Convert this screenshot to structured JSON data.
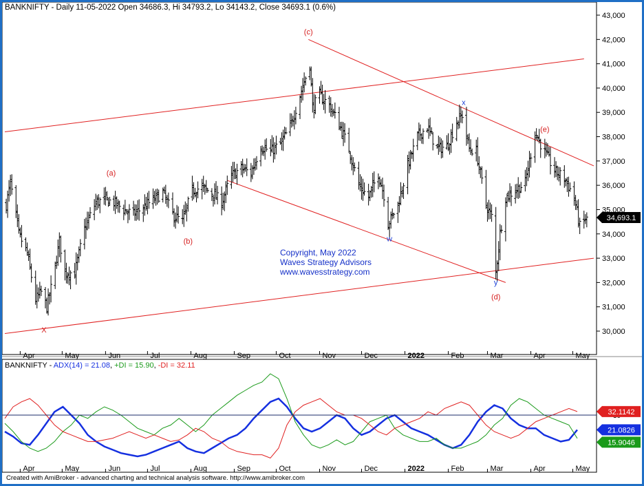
{
  "upper_panel": {
    "header": "BANKNIFTY - Daily 11-05-2022 Open 34686.3, Hi 34793.2, Lo 34143.2, Close 34693.1 (0.6%)",
    "last_price_label": "34,693.1",
    "watermark": [
      "Copyright, May 2022",
      "Waves Strategy Advisors",
      "www.wavesstrategy.com"
    ],
    "wave_labels": [
      {
        "text": "(c)",
        "color": "#d62020"
      },
      {
        "text": "(a)",
        "color": "#d62020"
      },
      {
        "text": "(b)",
        "color": "#d62020"
      },
      {
        "text": "X",
        "color": "#d62020"
      },
      {
        "text": "w",
        "color": "#1a3fd6"
      },
      {
        "text": "x",
        "color": "#1a3fd6"
      },
      {
        "text": "y",
        "color": "#1a3fd6"
      },
      {
        "text": "(d)",
        "color": "#d62020"
      },
      {
        "text": "(e)",
        "color": "#d62020"
      }
    ]
  },
  "lower_panel": {
    "header": {
      "prefix": "BANKNIFTY - ",
      "adx": "ADX(14) = 21.08",
      "sep1": ", ",
      "pdi": "+DI = 15.90",
      "sep2": ", ",
      "mdi": "-DI = 32.11"
    },
    "reference_level_label": "30",
    "value_boxes": [
      {
        "name": "-DI",
        "text": "32.1142",
        "color": "#e02020"
      },
      {
        "name": "ADX",
        "text": "21.0826",
        "color": "#1530e0"
      },
      {
        "name": "+DI",
        "text": "15.9046",
        "color": "#1a9a1a"
      }
    ]
  },
  "footer": "Created with AmiBroker - advanced charting and technical analysis software. http://www.amibroker.com",
  "chart_data": [
    {
      "type": "ohlc",
      "title": "BANKNIFTY - Daily",
      "y_tick_labels": [
        "30,000",
        "31,000",
        "32,000",
        "33,000",
        "34,000",
        "35,000",
        "36,000",
        "37,000",
        "38,000",
        "39,000",
        "40,000",
        "41,000",
        "42,000",
        "43,000"
      ],
      "ylim": [
        29700,
        43200
      ],
      "x_tick_labels": [
        "Apr",
        "May",
        "Jun",
        "Jul",
        "Aug",
        "Sep",
        "Oct",
        "Nov",
        "Dec",
        "2022",
        "Feb",
        "Mar",
        "Apr",
        "May"
      ],
      "xlim": [
        "2021-03-21",
        "2022-05-16"
      ],
      "price_path": [
        {
          "date": "2021-03-22",
          "close": 35200
        },
        {
          "date": "2021-03-25",
          "close": 36100
        },
        {
          "date": "2021-03-31",
          "close": 34000
        },
        {
          "date": "2021-04-06",
          "close": 33200
        },
        {
          "date": "2021-04-12",
          "close": 31300
        },
        {
          "date": "2021-04-16",
          "close": 31600
        },
        {
          "date": "2021-04-20",
          "close": 31000
        },
        {
          "date": "2021-04-24",
          "close": 32000
        },
        {
          "date": "2021-04-29",
          "close": 33700
        },
        {
          "date": "2021-05-03",
          "close": 32400
        },
        {
          "date": "2021-05-10",
          "close": 32400
        },
        {
          "date": "2021-05-17",
          "close": 34200
        },
        {
          "date": "2021-05-25",
          "close": 35300
        },
        {
          "date": "2021-06-01",
          "close": 35400
        },
        {
          "date": "2021-06-07",
          "close": 35300
        },
        {
          "date": "2021-06-14",
          "close": 35000
        },
        {
          "date": "2021-06-21",
          "close": 34800
        },
        {
          "date": "2021-06-28",
          "close": 35100
        },
        {
          "date": "2021-07-05",
          "close": 35400
        },
        {
          "date": "2021-07-12",
          "close": 35700
        },
        {
          "date": "2021-07-19",
          "close": 34800
        },
        {
          "date": "2021-07-26",
          "close": 34500
        },
        {
          "date": "2021-08-02",
          "close": 35800
        },
        {
          "date": "2021-08-09",
          "close": 35900
        },
        {
          "date": "2021-08-16",
          "close": 35700
        },
        {
          "date": "2021-08-23",
          "close": 35300
        },
        {
          "date": "2021-08-30",
          "close": 36400
        },
        {
          "date": "2021-09-06",
          "close": 36700
        },
        {
          "date": "2021-09-13",
          "close": 36500
        },
        {
          "date": "2021-09-20",
          "close": 37600
        },
        {
          "date": "2021-09-27",
          "close": 37400
        },
        {
          "date": "2021-10-04",
          "close": 37700
        },
        {
          "date": "2021-10-11",
          "close": 38400
        },
        {
          "date": "2021-10-18",
          "close": 39700
        },
        {
          "date": "2021-10-25",
          "close": 41000
        },
        {
          "date": "2021-10-27",
          "close": 39200
        },
        {
          "date": "2021-11-01",
          "close": 39700
        },
        {
          "date": "2021-11-08",
          "close": 39300
        },
        {
          "date": "2021-11-15",
          "close": 38500
        },
        {
          "date": "2021-11-22",
          "close": 37500
        },
        {
          "date": "2021-11-29",
          "close": 36000
        },
        {
          "date": "2021-12-06",
          "close": 35500
        },
        {
          "date": "2021-12-13",
          "close": 36500
        },
        {
          "date": "2021-12-17",
          "close": 35600
        },
        {
          "date": "2021-12-20",
          "close": 34400
        },
        {
          "date": "2021-12-27",
          "close": 35200
        },
        {
          "date": "2022-01-03",
          "close": 36800
        },
        {
          "date": "2022-01-10",
          "close": 38000
        },
        {
          "date": "2022-01-17",
          "close": 38400
        },
        {
          "date": "2022-01-24",
          "close": 37500
        },
        {
          "date": "2022-01-31",
          "close": 37600
        },
        {
          "date": "2022-02-07",
          "close": 38600
        },
        {
          "date": "2022-02-11",
          "close": 38900
        },
        {
          "date": "2022-02-16",
          "close": 37500
        },
        {
          "date": "2022-02-21",
          "close": 37400
        },
        {
          "date": "2022-02-28",
          "close": 35200
        },
        {
          "date": "2022-03-04",
          "close": 34700
        },
        {
          "date": "2022-03-07",
          "close": 32400
        },
        {
          "date": "2022-03-10",
          "close": 34000
        },
        {
          "date": "2022-03-14",
          "close": 35500
        },
        {
          "date": "2022-03-21",
          "close": 35800
        },
        {
          "date": "2022-03-28",
          "close": 36100
        },
        {
          "date": "2022-04-04",
          "close": 38200
        },
        {
          "date": "2022-04-08",
          "close": 37700
        },
        {
          "date": "2022-04-18",
          "close": 36600
        },
        {
          "date": "2022-04-25",
          "close": 36300
        },
        {
          "date": "2022-05-02",
          "close": 35500
        },
        {
          "date": "2022-05-06",
          "close": 34300
        },
        {
          "date": "2022-05-11",
          "close": 34693
        }
      ],
      "trendlines": [
        {
          "from": [
            "2021-03-21",
            29900
          ],
          "to": [
            "2022-05-16",
            33000
          ],
          "color": "#e02020"
        },
        {
          "from": [
            "2021-03-21",
            38200
          ],
          "to": [
            "2022-05-09",
            41200
          ],
          "color": "#e02020"
        },
        {
          "from": [
            "2021-10-24",
            42000
          ],
          "to": [
            "2022-05-16",
            36800
          ],
          "color": "#e02020"
        },
        {
          "from": [
            "2021-08-27",
            36200
          ],
          "to": [
            "2022-03-14",
            32000
          ],
          "color": "#e02020"
        }
      ],
      "wave_points": [
        {
          "label": "(c)",
          "date": "2021-10-24",
          "price": 42200
        },
        {
          "label": "(a)",
          "date": "2021-06-05",
          "price": 36400
        },
        {
          "label": "(b)",
          "date": "2021-07-30",
          "price": 33600
        },
        {
          "label": "X",
          "date": "2021-04-18",
          "price": 29950
        },
        {
          "label": "w",
          "date": "2021-12-21",
          "price": 33700
        },
        {
          "label": "x",
          "date": "2022-02-12",
          "price": 39300
        },
        {
          "label": "y",
          "date": "2022-03-07",
          "price": 31900
        },
        {
          "label": "(d)",
          "date": "2022-03-07",
          "price": 31300
        },
        {
          "label": "(e)",
          "date": "2022-04-11",
          "price": 38200
        }
      ],
      "last_close": 34693.1,
      "grid": false
    },
    {
      "type": "line",
      "title": "ADX(14)",
      "ylim": [
        0,
        60
      ],
      "reference_level": 30,
      "series": [
        {
          "name": "ADX(14)",
          "color": "#1530e0",
          "values": [
            20,
            17,
            13,
            12,
            18,
            25,
            32,
            35,
            30,
            25,
            18,
            14,
            11,
            9,
            7,
            6,
            5,
            6,
            8,
            10,
            12,
            14,
            10,
            8,
            7,
            10,
            13,
            16,
            18,
            22,
            28,
            33,
            38,
            40,
            35,
            28,
            22,
            20,
            22,
            26,
            30,
            28,
            22,
            18,
            20,
            24,
            28,
            30,
            26,
            22,
            20,
            18,
            15,
            12,
            10,
            12,
            18,
            26,
            32,
            36,
            34,
            28,
            24,
            22,
            22,
            18,
            16,
            14,
            15,
            21.08
          ]
        },
        {
          "name": "+DI",
          "color": "#1a9a1a",
          "values": [
            25,
            20,
            14,
            10,
            8,
            10,
            14,
            20,
            24,
            30,
            28,
            32,
            35,
            33,
            30,
            26,
            22,
            20,
            18,
            22,
            24,
            28,
            24,
            20,
            24,
            30,
            34,
            38,
            42,
            45,
            48,
            50,
            55,
            52,
            40,
            26,
            18,
            12,
            10,
            12,
            15,
            12,
            14,
            20,
            26,
            28,
            30,
            22,
            18,
            16,
            14,
            14,
            16,
            12,
            10,
            10,
            12,
            14,
            18,
            24,
            28,
            36,
            40,
            38,
            34,
            30,
            28,
            26,
            24,
            15.9
          ]
        },
        {
          "name": "-DI",
          "color": "#e02020",
          "values": [
            28,
            35,
            38,
            40,
            36,
            30,
            24,
            20,
            18,
            16,
            14,
            14,
            15,
            16,
            18,
            20,
            18,
            16,
            18,
            16,
            14,
            15,
            18,
            22,
            20,
            16,
            14,
            10,
            8,
            7,
            6,
            6,
            4,
            10,
            24,
            32,
            36,
            38,
            40,
            36,
            32,
            30,
            30,
            28,
            24,
            20,
            18,
            22,
            24,
            26,
            28,
            32,
            30,
            34,
            36,
            38,
            36,
            30,
            24,
            20,
            18,
            16,
            18,
            22,
            26,
            28,
            30,
            32,
            34,
            32.11
          ]
        }
      ]
    }
  ]
}
